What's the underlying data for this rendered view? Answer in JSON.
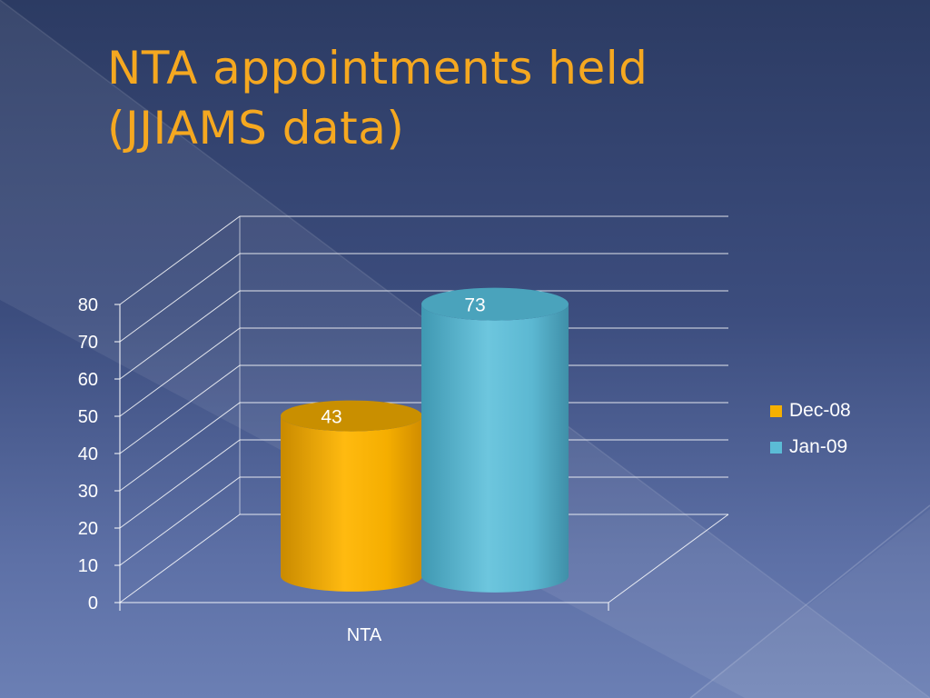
{
  "slide": {
    "title_line1": "NTA appointments held",
    "title_line2": "(JJIAMS data)"
  },
  "chart_data": {
    "type": "bar",
    "style": "3d-cylinder",
    "categories": [
      "NTA"
    ],
    "series": [
      {
        "name": "Dec-08",
        "values": [
          43
        ],
        "color": "#f5b000"
      },
      {
        "name": "Jan-09",
        "values": [
          73
        ],
        "color": "#5bbcd6"
      }
    ],
    "ylim": [
      0,
      80
    ],
    "yticks": [
      0,
      10,
      20,
      30,
      40,
      50,
      60,
      70,
      80
    ],
    "data_labels": [
      "43",
      "73"
    ],
    "grid": true,
    "legend_position": "right"
  }
}
